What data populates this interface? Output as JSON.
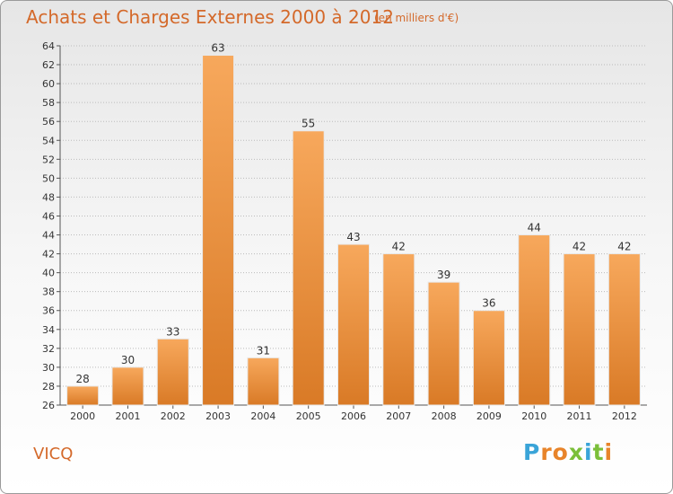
{
  "title": "Achats et Charges Externes 2000 à 2012",
  "subtitle": "(en milliers d'€)",
  "commune": "VICQ",
  "logo_letters": [
    "P",
    "r",
    "o",
    "x",
    "i",
    "t",
    "i"
  ],
  "colors": {
    "bar_light": "#f7a85c",
    "bar_dark": "#d97a26",
    "title": "#d4692a",
    "grid": "#bbbbbb"
  },
  "chart_data": {
    "type": "bar",
    "categories": [
      "2000",
      "2001",
      "2002",
      "2003",
      "2004",
      "2005",
      "2006",
      "2007",
      "2008",
      "2009",
      "2010",
      "2011",
      "2012"
    ],
    "values": [
      28,
      30,
      33,
      63,
      31,
      55,
      43,
      42,
      39,
      36,
      44,
      42,
      42
    ],
    "ylim": [
      26,
      64
    ],
    "yticks": [
      26,
      28,
      30,
      32,
      34,
      36,
      38,
      40,
      42,
      44,
      46,
      48,
      50,
      52,
      54,
      56,
      58,
      60,
      62,
      64
    ],
    "grid": true
  }
}
